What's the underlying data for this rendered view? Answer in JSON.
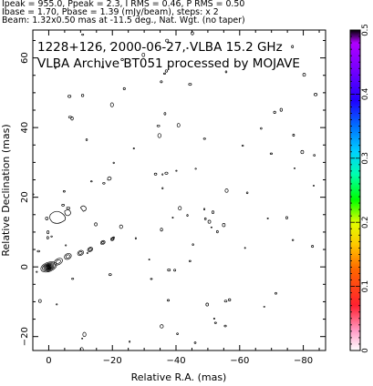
{
  "header": {
    "line1": "Ipeak = 955.0, Ppeak = 2.3, I RMS = 0.46, P RMS = 0.50",
    "line2": "Ibase = 1.70, Pbase = 1.39 (mJy/beam), steps: x 2",
    "line3": "Beam: 1.32x0.50 mas at -11.5 deg., Nat. Wgt. (no taper)"
  },
  "chart_data": {
    "type": "contour",
    "title_line1": "1228+126, 2000-06-27, VLBA 15.2 GHz",
    "title_line2": "VLBA Archive BT051 processed by MOJAVE",
    "xlabel": "Relative R.A. (mas)",
    "ylabel": "Relative Declination (mas)",
    "xlim": [
      5,
      -87
    ],
    "ylim": [
      -24,
      68
    ],
    "x_ticks": [
      0,
      -20,
      -40,
      -60,
      -80
    ],
    "y_ticks": [
      -20,
      0,
      20,
      40,
      60
    ],
    "colorbar": {
      "range": [
        0,
        0.5
      ],
      "ticks": [
        0,
        0.1,
        0.2,
        0.3,
        0.4,
        0.5
      ],
      "tick_labels": [
        "0",
        "0.1",
        "0.2",
        "0.3",
        "0.4",
        "0.5"
      ]
    },
    "core": {
      "x": 0,
      "y": 0
    },
    "jet_position_angle_approx_deg": -75,
    "jet_features": [
      {
        "x": -3,
        "y": 1.5
      },
      {
        "x": -6,
        "y": 3
      },
      {
        "x": -10,
        "y": 4
      },
      {
        "x": -13,
        "y": 5
      },
      {
        "x": -17,
        "y": 7
      },
      {
        "x": -20,
        "y": 8
      },
      {
        "x": -2,
        "y": 15
      },
      {
        "x": -7,
        "y": 16
      },
      {
        "x": -12,
        "y": 17
      },
      {
        "x": -19,
        "y": 26
      }
    ]
  },
  "colors": {
    "contour": "#000000",
    "axes": "#000000",
    "background": "#ffffff"
  }
}
